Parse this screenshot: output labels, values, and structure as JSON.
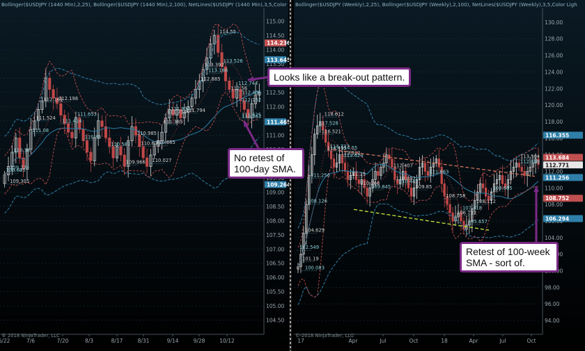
{
  "chart_data": [
    {
      "type": "candlestick",
      "header": "Bollinger($USDJPY (1440 Min),2,25), Bollinger($USDJPY (1440 Min),2,100), NetLines($USDJPY (1440 Min),3,5,Color",
      "footer": "© 2018 NinjaTrader, LLC",
      "x_ticks": [
        "6/22",
        "7/6",
        "7/20",
        "8/3",
        "8/17",
        "8/31",
        "9/14",
        "9/28",
        "10/12"
      ],
      "y_ticks": [
        115.0,
        114.5,
        114.0,
        113.5,
        113.0,
        112.5,
        112.0,
        111.5,
        111.0,
        110.5,
        110.0,
        109.5,
        109.0,
        108.5,
        108.0,
        107.5,
        107.0,
        106.5,
        106.0,
        105.5,
        105.0,
        104.5
      ],
      "ylim": [
        104.2,
        115.4
      ],
      "price_tags": [
        {
          "value": 114.236,
          "label": "114.236",
          "color": "#c05050"
        },
        {
          "value": 113.645,
          "label": "113.645",
          "color": "#2f7fa8"
        },
        {
          "value": 111.465,
          "label": "111.465",
          "color": "#2f7fa8"
        },
        {
          "value": 109.264,
          "label": "109.264",
          "color": "#2f7fa8"
        }
      ],
      "level_labels": [
        "114.55",
        "113.526",
        "113.392",
        "113.186",
        "112.885",
        "112.744",
        "112.56",
        "112.406",
        "112.198",
        "112.152",
        "112.161",
        "111.834",
        "111.794",
        "111.653",
        "111.524",
        "111.414",
        "111.733",
        "111.625",
        "111.385",
        "111.08",
        "110.985",
        "110.85",
        "110.665",
        "110.38",
        "110.027",
        "109.774",
        "109.966",
        "109.685",
        "109.305",
        "111.563",
        "110.628",
        "110.587"
      ],
      "closes": [
        109.6,
        109.9,
        110.4,
        110.9,
        110.2,
        109.8,
        110.5,
        111.2,
        111.5,
        111.9,
        112.2,
        113.0,
        112.6,
        112.3,
        112.1,
        111.7,
        111.4,
        111.1,
        110.9,
        111.6,
        111.2,
        110.8,
        110.4,
        110.1,
        110.9,
        111.5,
        111.3,
        110.9,
        110.6,
        110.2,
        110.6,
        110.3,
        109.9,
        110.8,
        111.3,
        111.0,
        110.6,
        110.2,
        109.9,
        110.3,
        110.6,
        110.8,
        111.1,
        111.6,
        111.9,
        111.7,
        111.9,
        111.6,
        111.8,
        112.0,
        112.3,
        112.6,
        112.9,
        113.3,
        113.7,
        114.2,
        114.5,
        113.9,
        113.4,
        112.9,
        112.6,
        112.3,
        112.6,
        112.2,
        111.9,
        111.6,
        112.1,
        112.4,
        112.5
      ]
    },
    {
      "type": "candlestick",
      "header": "Bollinger($USDJPY (Weekly),2,25), Bollinger($USDJPY (Weekly),2,100), NetLines($USDJPY (Weekly),3,5,Color Ligh",
      "footer": "© 2018 NinjaTrader, LLC",
      "x_ticks": [
        "17",
        "Apr",
        "Jul",
        "Oct",
        "18",
        "Apr",
        "Jul",
        "Oct"
      ],
      "y_ticks": [
        130.0,
        128.0,
        126.0,
        124.0,
        122.0,
        120.0,
        118.0,
        116.0,
        114.0,
        112.0,
        110.0,
        108.0,
        106.0,
        104.0,
        102.0,
        100.0,
        98.0,
        96.0,
        94.0
      ],
      "ylim": [
        93.0,
        131.5
      ],
      "price_tags": [
        {
          "value": 116.355,
          "label": "116.355",
          "color": "#2f7fa8"
        },
        {
          "value": 113.684,
          "label": "113.684",
          "color": "#c05050"
        },
        {
          "value": 112.771,
          "label": "112.771",
          "color": "#e8e8e8"
        },
        {
          "value": 111.256,
          "label": "111.256",
          "color": "#2f7fa8"
        },
        {
          "value": 108.752,
          "label": "108.752",
          "color": "#c05050"
        },
        {
          "value": 106.294,
          "label": "106.294",
          "color": "#2f7fa8"
        }
      ],
      "level_labels": [
        "118.612",
        "117.528",
        "116.521",
        "114.55",
        "114.495",
        "114.737",
        "113.912",
        "113.624",
        "113.504",
        "112.859",
        "112.407",
        "111.663",
        "111.35",
        "111.256",
        "110.882",
        "110.483",
        "110.266",
        "109.845",
        "109.85",
        "109.685",
        "108.758",
        "108.126",
        "108.112",
        "107.318",
        "106.732",
        "105.657",
        "104.629",
        "102.549",
        "101.19",
        "100.083"
      ],
      "closes": [
        100.5,
        102.0,
        104.5,
        108.0,
        111.5,
        114.0,
        116.5,
        117.5,
        118.0,
        117.0,
        115.5,
        114.5,
        113.5,
        112.5,
        113.0,
        114.0,
        113.0,
        112.0,
        111.0,
        111.5,
        112.0,
        111.0,
        110.5,
        111.0,
        110.0,
        109.0,
        110.0,
        111.0,
        112.0,
        111.5,
        112.5,
        113.0,
        114.0,
        113.5,
        112.5,
        111.0,
        110.5,
        111.0,
        112.0,
        111.0,
        110.0,
        109.0,
        110.0,
        111.0,
        112.5,
        113.0,
        112.0,
        111.5,
        112.5,
        113.0,
        113.5,
        112.5,
        110.5,
        109.0,
        108.0,
        107.0,
        106.0,
        106.5,
        107.0,
        106.0,
        105.0,
        105.5,
        106.0,
        107.5,
        108.5,
        109.5,
        110.5,
        110.0,
        109.0,
        108.5,
        109.5,
        110.5,
        111.0,
        111.5,
        110.5,
        110.0,
        111.0,
        112.0,
        112.5,
        113.0,
        112.5,
        112.0,
        111.5,
        112.0,
        112.5,
        113.0,
        113.5,
        112.8
      ]
    }
  ],
  "annotations": [
    {
      "text": "Looks like a break-out pattern."
    },
    {
      "text": "No retest of 100-day SMA."
    },
    {
      "text": "Retest of 100-week SMA - sort of."
    }
  ],
  "colors": {
    "background": "#000000",
    "bull": "#d8d8d8",
    "bear": "#c04848",
    "inner_band": "#b04848",
    "outer_band": "#2f7fa8",
    "trend_up": "#e07a5f",
    "trend_low": "#b8e03a",
    "annotation_border": "#7a2a86"
  }
}
